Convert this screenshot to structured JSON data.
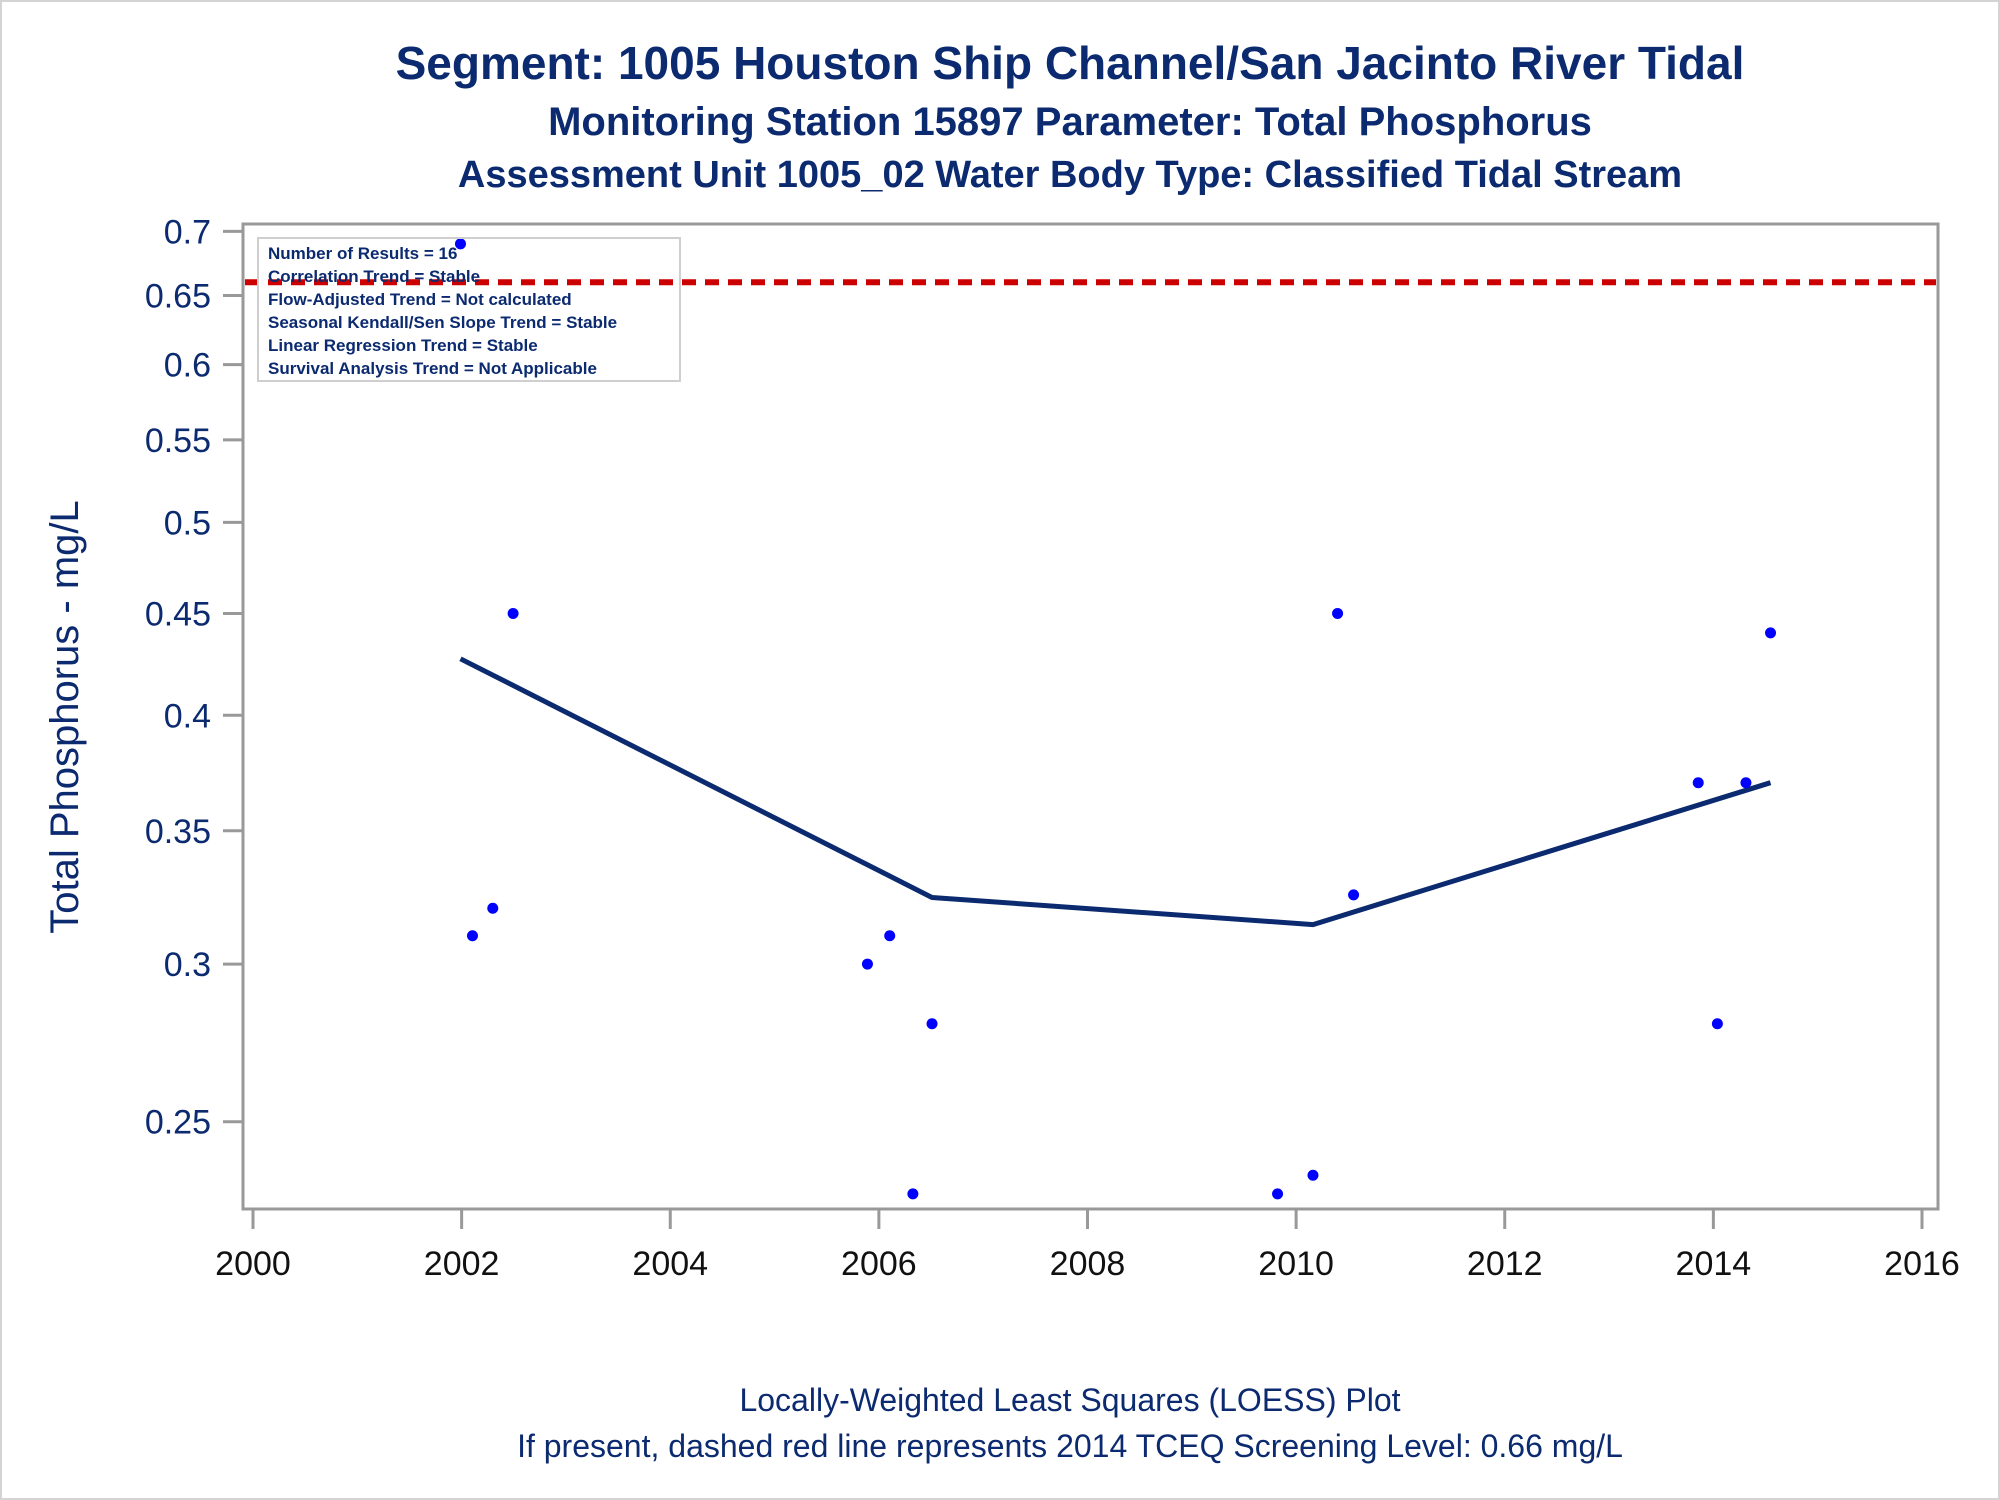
{
  "titles": {
    "line1": "Segment: 1005  Houston Ship Channel/San Jacinto River Tidal",
    "line2": "Monitoring Station 15897 Parameter: Total Phosphorus",
    "line3": "Assessment Unit 1005_02   Water Body Type: Classified Tidal Stream"
  },
  "footnotes": {
    "line1": "Locally-Weighted Least Squares (LOESS) Plot",
    "line2": "If present, dashed red line represents 2014 TCEQ Screening Level: 0.66 mg/L"
  },
  "stats_box": [
    "Number of Results = 16",
    "Correlation Trend = Stable",
    "Flow-Adjusted Trend = Not calculated",
    "Seasonal Kendall/Sen Slope Trend = Stable",
    "Linear Regression Trend = Stable",
    "Survival Analysis Trend = Not Applicable"
  ],
  "colors": {
    "points": "#0000ff",
    "loess": "#0b2a6f",
    "screening_line": "#cc0000",
    "text": "#0b2a6f",
    "axis": "#999999"
  },
  "chart_data": {
    "type": "scatter",
    "title": "Segment: 1005  Houston Ship Channel/San Jacinto River Tidal",
    "xlabel": "",
    "ylabel": "Total Phosphorus - mg/L",
    "y_scale": "log",
    "xlim": [
      2000,
      2016
    ],
    "ylim": [
      0.226,
      0.706
    ],
    "x_ticks": [
      2000,
      2002,
      2004,
      2006,
      2008,
      2010,
      2012,
      2014,
      2016
    ],
    "y_ticks": [
      0.25,
      0.3,
      0.35,
      0.4,
      0.45,
      0.5,
      0.55,
      0.6,
      0.65,
      0.7
    ],
    "grid": false,
    "legend": "top-left",
    "points": [
      {
        "x": "2001-12-28",
        "y": 0.69
      },
      {
        "x": "2002-02-08",
        "y": 0.31
      },
      {
        "x": "2002-04-20",
        "y": 0.32
      },
      {
        "x": "2002-06-30",
        "y": 0.45
      },
      {
        "x": "2005-11-22",
        "y": 0.3
      },
      {
        "x": "2006-02-08",
        "y": 0.31
      },
      {
        "x": "2006-04-30",
        "y": 0.23
      },
      {
        "x": "2006-07-06",
        "y": 0.28
      },
      {
        "x": "2009-10-28",
        "y": 0.23
      },
      {
        "x": "2010-03-01",
        "y": 0.235
      },
      {
        "x": "2010-05-26",
        "y": 0.45
      },
      {
        "x": "2010-07-21",
        "y": 0.325
      },
      {
        "x": "2013-11-09",
        "y": 0.37
      },
      {
        "x": "2014-01-15",
        "y": 0.28
      },
      {
        "x": "2014-04-25",
        "y": 0.37
      },
      {
        "x": "2014-07-20",
        "y": 0.44
      }
    ],
    "loess": {
      "x": [
        "2001-12-28",
        "2006-07-06",
        "2010-03-01",
        "2011-03-01",
        "2012-11-01",
        "2014-07-20"
      ],
      "y": [
        0.427,
        0.324,
        0.314,
        0.326,
        0.347,
        0.37
      ]
    },
    "reference_line": {
      "y": 0.66,
      "style": "dashed"
    }
  }
}
